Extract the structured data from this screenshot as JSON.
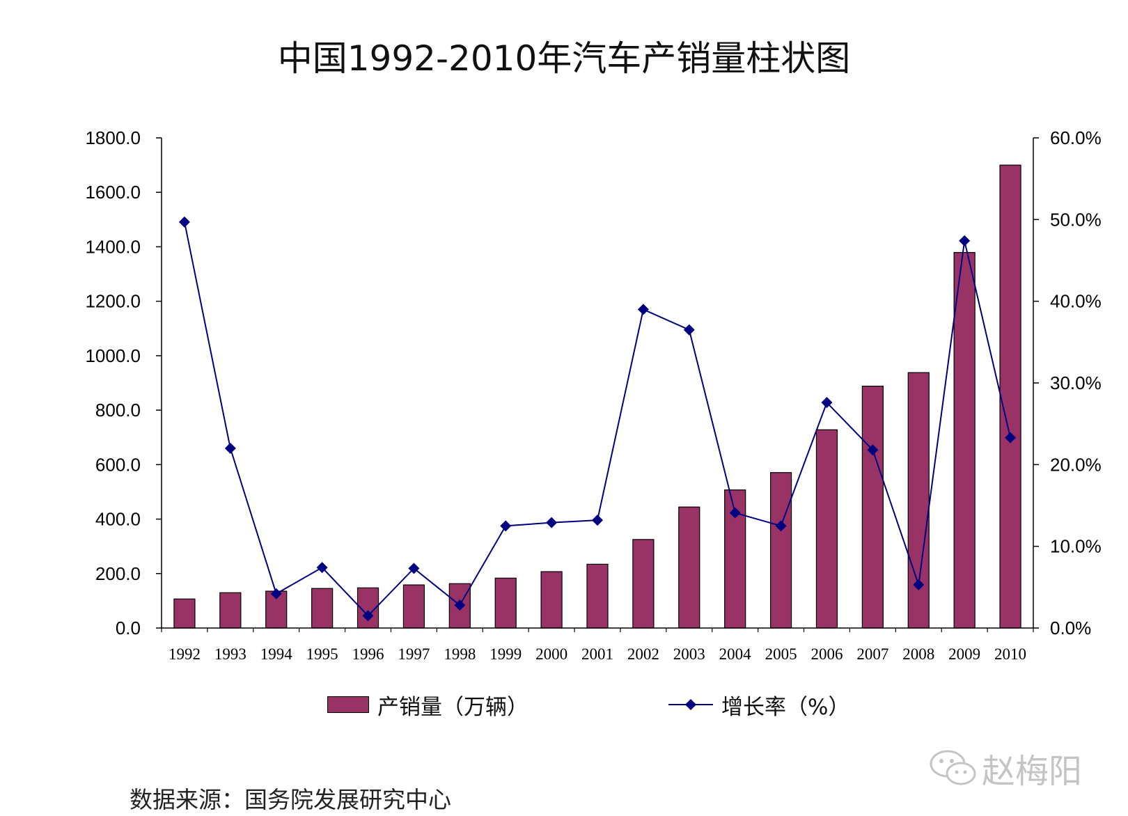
{
  "title": "中国1992-2010年汽车产销量柱状图",
  "source_note": "数据来源：国务院发展研究中心",
  "watermark": "赵梅阳",
  "colors": {
    "bar": "#993366",
    "line": "#000080",
    "axis": "#000000"
  },
  "legend": {
    "bar_label": "产销量（万辆）",
    "line_label": "增长率（%）"
  },
  "chart_data": {
    "type": "bar",
    "title": "中国1992-2010年汽车产销量柱状图",
    "categories": [
      "1992",
      "1993",
      "1994",
      "1995",
      "1996",
      "1997",
      "1998",
      "1999",
      "2000",
      "2001",
      "2002",
      "2003",
      "2004",
      "2005",
      "2006",
      "2007",
      "2008",
      "2009",
      "2010"
    ],
    "series": [
      {
        "name": "产销量（万辆）",
        "type": "bar",
        "axis": "left",
        "values": [
          106.7,
          129.7,
          135.3,
          145.3,
          147.5,
          158.3,
          162.9,
          183.2,
          207.0,
          234.2,
          325.1,
          444.4,
          507.1,
          570.8,
          728.0,
          888.2,
          938.0,
          1379.1,
          1700.0
        ]
      },
      {
        "name": "增长率（%）",
        "type": "line",
        "axis": "right",
        "values": [
          49.7,
          22.0,
          4.2,
          7.4,
          1.5,
          7.3,
          2.8,
          12.5,
          12.9,
          13.2,
          39.0,
          36.5,
          14.1,
          12.5,
          27.6,
          21.8,
          5.3,
          47.4,
          23.3
        ]
      }
    ],
    "y_left": {
      "range": [
        0,
        1800
      ],
      "ticks": [
        "0.0",
        "200.0",
        "400.0",
        "600.0",
        "800.0",
        "1000.0",
        "1200.0",
        "1400.0",
        "1600.0",
        "1800.0"
      ]
    },
    "y_right": {
      "range": [
        0,
        60
      ],
      "ticks": [
        "0.0%",
        "10.0%",
        "20.0%",
        "30.0%",
        "40.0%",
        "50.0%",
        "60.0%"
      ]
    },
    "grid": false,
    "legend_position": "bottom"
  }
}
